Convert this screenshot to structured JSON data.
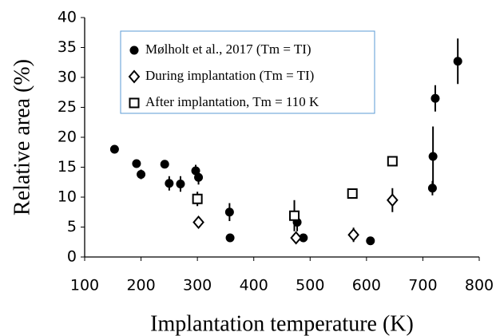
{
  "chart_data": {
    "type": "scatter",
    "x_label": "Implantation temperature (K)",
    "y_label": "Relative area (%)",
    "xlim": [
      100,
      800
    ],
    "xticks": [
      100,
      200,
      300,
      400,
      500,
      600,
      700,
      800
    ],
    "ylim": [
      0,
      40
    ],
    "yticks": [
      0,
      5,
      10,
      15,
      20,
      25,
      30,
      35,
      40
    ],
    "grid": false,
    "legend_position": "upper left",
    "series": [
      {
        "name": "Mølholt et al., 2017 (Tm = TI)",
        "marker": "circle",
        "color": "#000000",
        "x": [
          153,
          192,
          200,
          242,
          250,
          270,
          297,
          302,
          357,
          358,
          477,
          488,
          607,
          717,
          718,
          722,
          762
        ],
        "values": [
          18,
          15.6,
          13.8,
          15.5,
          12.3,
          12.2,
          14.4,
          13.3,
          7.5,
          3.2,
          5.8,
          3.2,
          2.7,
          11.5,
          16.8,
          26.5,
          32.7
        ],
        "errors": [
          0.7,
          0.5,
          0.8,
          0.7,
          1.2,
          1.3,
          1.0,
          1.2,
          1.5,
          0.3,
          1.5,
          0.3,
          0.4,
          1.2,
          5,
          2.2,
          3.8
        ]
      },
      {
        "name": "During implantation (Tm = TI)",
        "marker": "diamond",
        "color": "#000000",
        "x": [
          302,
          475,
          577,
          646
        ],
        "values": [
          5.8,
          3.2,
          3.7,
          9.5
        ],
        "errors": [
          0.3,
          1.0,
          1.2,
          2.0
        ]
      },
      {
        "name": "After implantation, Tm = 110 K",
        "marker": "square",
        "color": "#000000",
        "x": [
          300,
          472,
          575,
          646
        ],
        "values": [
          9.7,
          6.9,
          10.6,
          16
        ],
        "errors": [
          1.2,
          2.6,
          0.3,
          0.8
        ]
      }
    ]
  }
}
